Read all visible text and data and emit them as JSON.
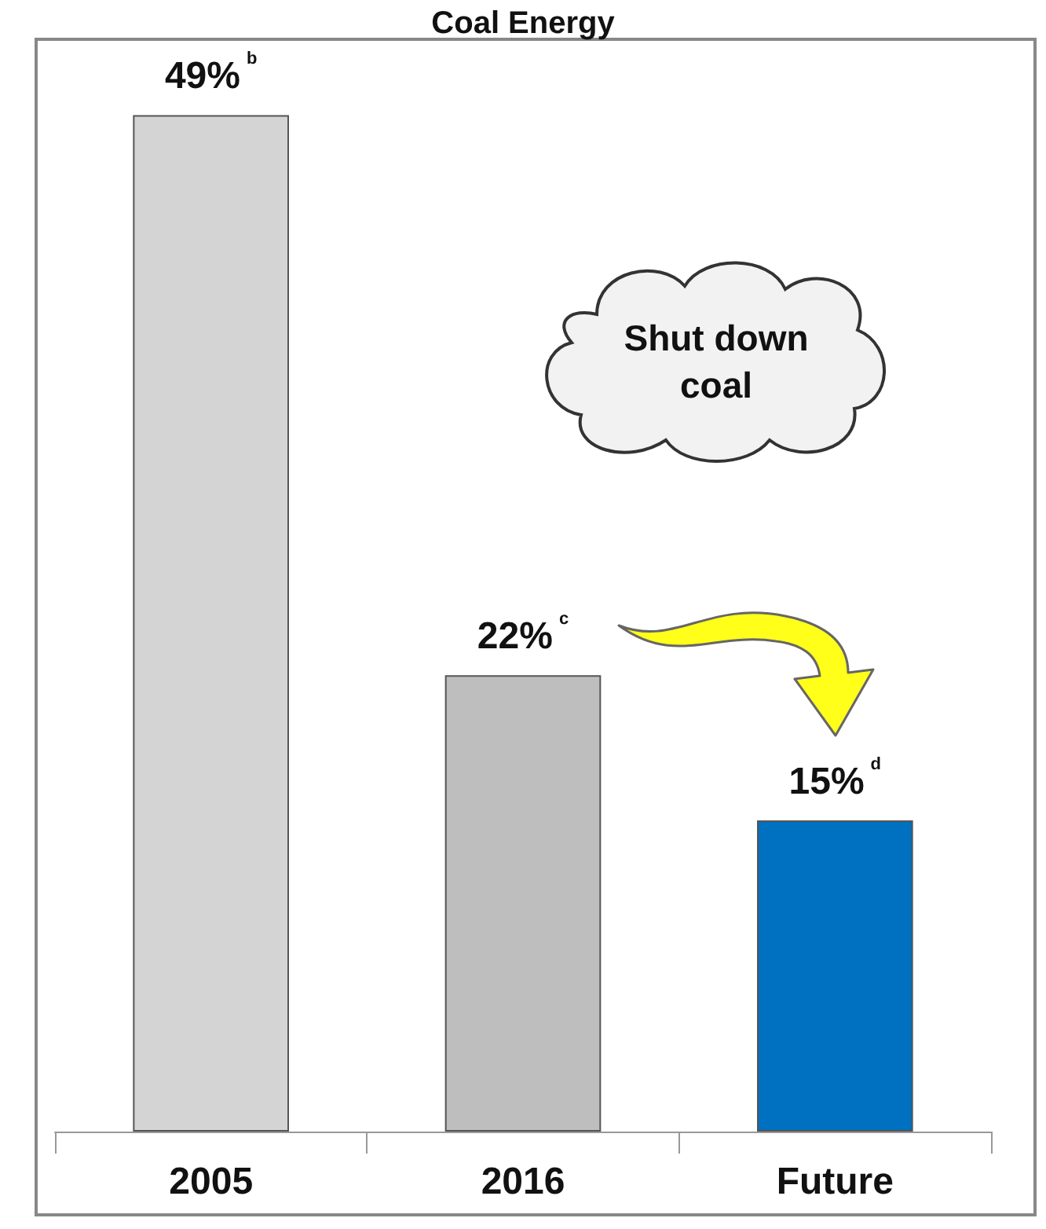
{
  "chart_data": {
    "type": "bar",
    "title": "Coal Energy",
    "categories": [
      "2005",
      "2016",
      "Future"
    ],
    "values": [
      49,
      22,
      15
    ],
    "colors": [
      "#d4d4d4",
      "#bebebe",
      "#0070c0"
    ],
    "value_labels": [
      "49%$^{b}$",
      "22%$^{c}$",
      "15%$^{d}$"
    ],
    "annotations": [
      "Shut down coal"
    ]
  }
}
